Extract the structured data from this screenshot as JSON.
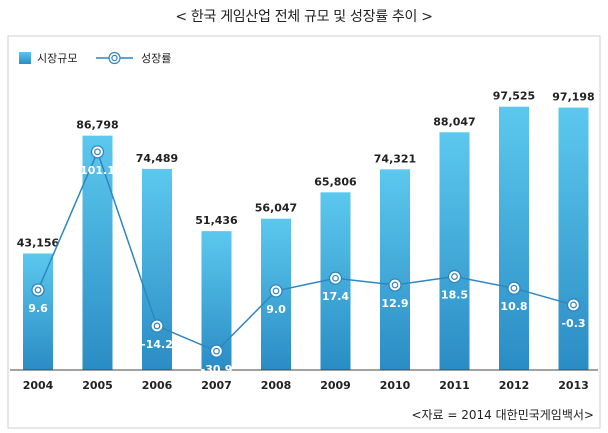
{
  "title": "< 한국 게임산업 전체 규모 및 성장률 추이 >",
  "source": "<자료 = 2014 대한민국게임백서>",
  "colors": {
    "bar_top": "#5cc8ee",
    "bar_bottom": "#2a8cc4",
    "line": "#2e86c1",
    "frame": "#cfcfcf",
    "axis": "#444444"
  },
  "chart_data": {
    "type": "bar+line",
    "categories": [
      "2004",
      "2005",
      "2006",
      "2007",
      "2008",
      "2009",
      "2010",
      "2011",
      "2012",
      "2013"
    ],
    "series": [
      {
        "name": "시장규모",
        "type": "bar",
        "values": [
          43156,
          86798,
          74489,
          51436,
          56047,
          65806,
          74321,
          88047,
          97525,
          97198
        ],
        "labels": [
          "43,156",
          "86,798",
          "74,489",
          "51,436",
          "56,047",
          "65,806",
          "74,321",
          "88,047",
          "97,525",
          "97,198"
        ]
      },
      {
        "name": "성장률",
        "type": "line",
        "values": [
          9.6,
          101.1,
          -14.2,
          -30.9,
          9.0,
          17.4,
          12.9,
          18.5,
          10.8,
          -0.3
        ],
        "labels": [
          "9.6",
          "101.1",
          "-14.2",
          "-30.9",
          "9.0",
          "17.4",
          "12.9",
          "18.5",
          "10.8",
          "-0.3"
        ]
      }
    ],
    "legend_position": "top-left"
  }
}
